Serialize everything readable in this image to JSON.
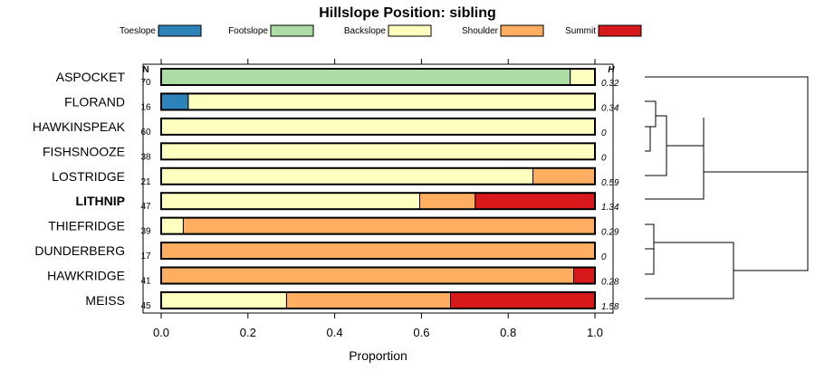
{
  "chart_data": {
    "type": "bar",
    "stacked": true,
    "orientation": "horizontal",
    "title": "Hillslope Position: sibling",
    "xlabel": "Proportion",
    "xlim": [
      0,
      1
    ],
    "x_ticks": [
      "0.0",
      "0.2",
      "0.4",
      "0.6",
      "0.8",
      "1.0"
    ],
    "legend_position": "top",
    "n_header": "N",
    "h_header": "H",
    "categories": [
      "Toeslope",
      "Footslope",
      "Backslope",
      "Shoulder",
      "Summit"
    ],
    "colors": [
      "#2b83ba",
      "#abdda4",
      "#ffffbf",
      "#fdae61",
      "#d7191c"
    ],
    "rows": [
      {
        "label": "ASPOCKET",
        "n": "70",
        "h": "0.32",
        "bold": false,
        "values": [
          0,
          0.943,
          0.057,
          0,
          0
        ]
      },
      {
        "label": "FLORAND",
        "n": "16",
        "h": "0.34",
        "bold": false,
        "values": [
          0.0625,
          0,
          0.9375,
          0,
          0
        ]
      },
      {
        "label": "HAWKINSPEAK",
        "n": "60",
        "h": "0",
        "bold": false,
        "values": [
          0,
          0,
          1,
          0,
          0
        ]
      },
      {
        "label": "FISHSNOOZE",
        "n": "38",
        "h": "0",
        "bold": false,
        "values": [
          0,
          0,
          1,
          0,
          0
        ]
      },
      {
        "label": "LOSTRIDGE",
        "n": "21",
        "h": "0.59",
        "bold": false,
        "values": [
          0,
          0,
          0.857,
          0.143,
          0
        ]
      },
      {
        "label": "LITHNIP",
        "n": "47",
        "h": "1.34",
        "bold": true,
        "values": [
          0,
          0,
          0.596,
          0.128,
          0.276
        ]
      },
      {
        "label": "THIEFRIDGE",
        "n": "39",
        "h": "0.29",
        "bold": false,
        "values": [
          0,
          0,
          0.051,
          0.949,
          0
        ]
      },
      {
        "label": "DUNDERBERG",
        "n": "17",
        "h": "0",
        "bold": false,
        "values": [
          0,
          0,
          0,
          1,
          0
        ]
      },
      {
        "label": "HAWKRIDGE",
        "n": "41",
        "h": "0.28",
        "bold": false,
        "values": [
          0,
          0,
          0,
          0.951,
          0.049
        ]
      },
      {
        "label": "MEISS",
        "n": "45",
        "h": "1.58",
        "bold": false,
        "values": [
          0,
          0,
          0.289,
          0.378,
          0.333
        ]
      }
    ]
  }
}
